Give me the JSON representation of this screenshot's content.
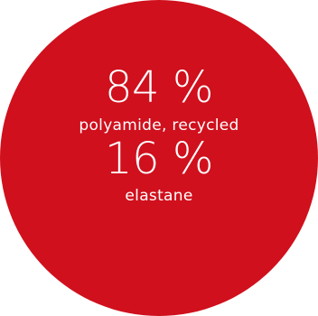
{
  "colors": {
    "badge_background": "#d0101d",
    "text": "#ffffff",
    "page_background": "#ffffff"
  },
  "composition": [
    {
      "percent": "84 %",
      "material": "polyamide, recycled"
    },
    {
      "percent": "16 %",
      "material": "elastane"
    }
  ]
}
